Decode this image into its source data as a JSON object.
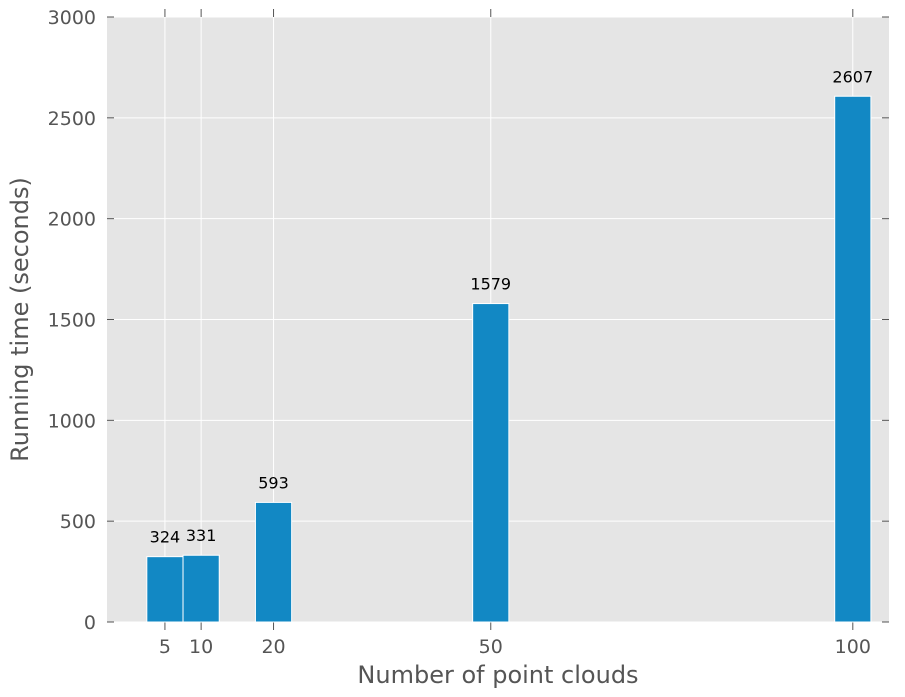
{
  "chart_data": {
    "type": "bar",
    "title": "",
    "xlabel": "Number of point clouds",
    "ylabel": "Running time (seconds)",
    "x": [
      5,
      10,
      20,
      50,
      100
    ],
    "values": [
      324,
      331,
      593,
      1579,
      2607
    ],
    "data_labels": [
      "324",
      "331",
      "593",
      "1579",
      "2607"
    ],
    "x_ticks": [
      5,
      10,
      20,
      50,
      100
    ],
    "x_tick_labels": [
      "5",
      "10",
      "20",
      "50",
      "100"
    ],
    "y_ticks": [
      0,
      500,
      1000,
      1500,
      2000,
      2500,
      3000
    ],
    "y_tick_labels": [
      "0",
      "500",
      "1000",
      "1500",
      "2000",
      "2500",
      "3000"
    ],
    "xlim": [
      -3,
      105
    ],
    "ylim": [
      0,
      3000
    ],
    "bar_width": 5,
    "grid": true,
    "colors": {
      "bar": "#1288c4",
      "plot_background": "#e5e5e5",
      "grid": "#ffffff",
      "text": "#555555",
      "data_label": "#000000"
    }
  }
}
